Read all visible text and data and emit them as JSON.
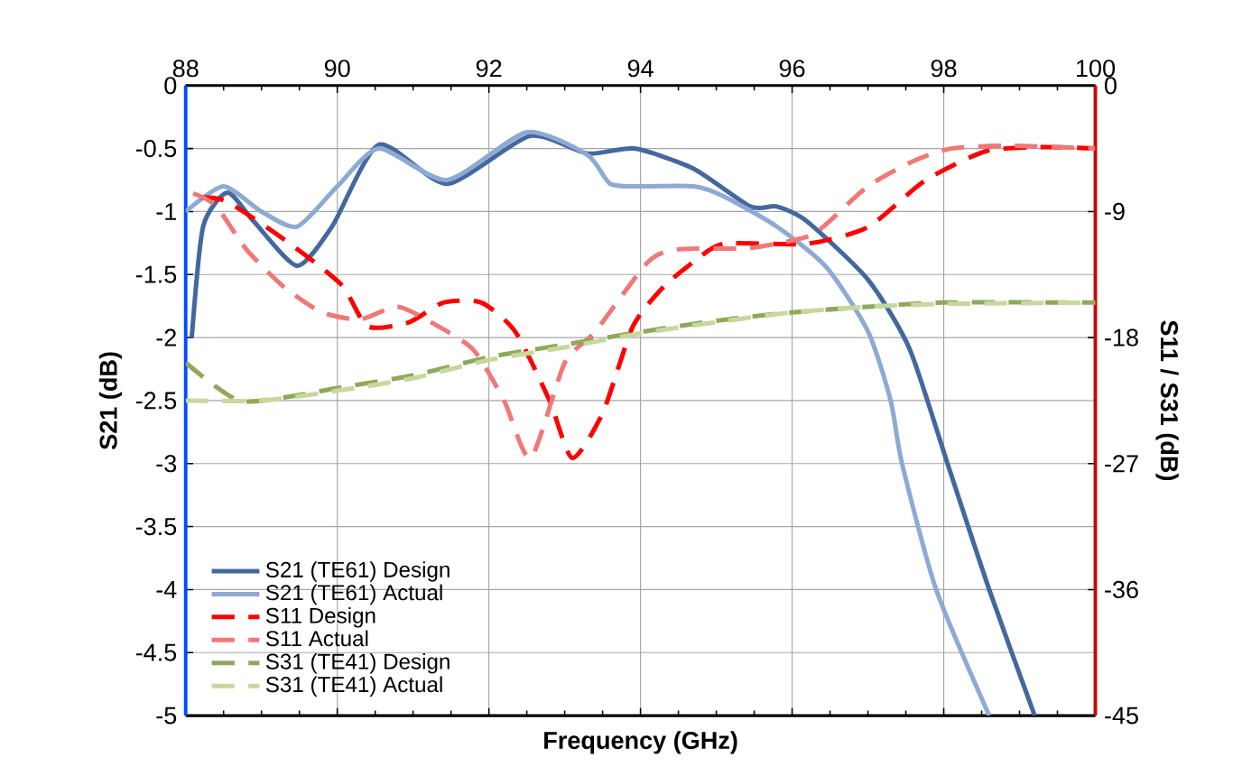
{
  "chart_data": {
    "type": "line",
    "xlabel": "Frequency (GHz)",
    "ylabel": "S21 (dB)",
    "y2label": "S11 / S31 (dB)",
    "xlim": [
      88,
      100
    ],
    "xticks": [
      88,
      90,
      92,
      94,
      96,
      98,
      100
    ],
    "ylim": [
      -5,
      0
    ],
    "yticks": [
      -5,
      -4.5,
      -4,
      -3.5,
      -3,
      -2.5,
      -2,
      -1.5,
      -1,
      -0.5,
      0
    ],
    "y2lim": [
      -45,
      0
    ],
    "y2ticks": [
      -45,
      -36,
      -27,
      -18,
      -9,
      0
    ],
    "grid": true,
    "legend": "bottom left",
    "marker": "none",
    "series": [
      {
        "name": "S21 (TE61) Design",
        "color": "#44689e",
        "line_style": "solid",
        "x": [
          88.08,
          88.23,
          88.55,
          88.9,
          89.47,
          89.93,
          90.55,
          91.45,
          92.54,
          93.3,
          93.92,
          94.7,
          95.45,
          95.8,
          96.2,
          97.0,
          97.55,
          98.05,
          98.6,
          99.2
        ],
        "values": [
          -2.0,
          -1.12,
          -0.85,
          -1.08,
          -1.43,
          -1.12,
          -0.47,
          -0.78,
          -0.4,
          -0.54,
          -0.5,
          -0.66,
          -0.96,
          -0.96,
          -1.08,
          -1.54,
          -2.09,
          -3.0,
          -4.0,
          -5.0
        ]
      },
      {
        "name": "S21 (TE61) Actual",
        "color": "#8eaad4",
        "line_style": "solid",
        "x": [
          88.0,
          88.5,
          89.0,
          89.47,
          90.0,
          90.55,
          91.45,
          92.5,
          93.3,
          93.6,
          94.0,
          94.7,
          95.1,
          95.8,
          96.45,
          97.0,
          97.3,
          97.45,
          97.9,
          98.6
        ],
        "values": [
          -1.0,
          -0.8,
          -1.0,
          -1.12,
          -0.8,
          -0.5,
          -0.75,
          -0.37,
          -0.55,
          -0.78,
          -0.8,
          -0.8,
          -0.88,
          -1.12,
          -1.44,
          -1.95,
          -2.5,
          -3.0,
          -4.0,
          -5.0
        ]
      },
      {
        "name": "S11 Design",
        "color": "#ff0000",
        "line_style": "dashed",
        "axis": "y2",
        "x": [
          88.2,
          88.55,
          89.3,
          90.05,
          90.4,
          90.95,
          91.4,
          91.9,
          92.35,
          92.8,
          93.1,
          93.5,
          93.9,
          94.3,
          94.7,
          95.1,
          96.2,
          97.0,
          97.75,
          98.55,
          99.3,
          100
        ],
        "values": [
          -8.0,
          -8.3,
          -11.0,
          -14.2,
          -17.2,
          -16.9,
          -15.5,
          -15.5,
          -17.6,
          -22.5,
          -26.6,
          -23.4,
          -17.2,
          -14.4,
          -12.6,
          -11.3,
          -11.3,
          -10.1,
          -6.8,
          -4.7,
          -4.4,
          -4.5
        ]
      },
      {
        "name": "S11 Actual",
        "color": "#f07878",
        "line_style": "dashed",
        "axis": "y2",
        "x": [
          88.1,
          88.4,
          88.8,
          89.3,
          89.8,
          90.3,
          90.8,
          91.3,
          91.8,
          92.2,
          92.55,
          93.0,
          93.4,
          94.1,
          94.5,
          95.45,
          96.2,
          96.45,
          97.0,
          97.6,
          98.1,
          98.9,
          100
        ],
        "values": [
          -7.7,
          -8.6,
          -11.7,
          -14.4,
          -16.2,
          -16.7,
          -15.8,
          -17.1,
          -18.9,
          -22.5,
          -26.6,
          -19.8,
          -17.6,
          -12.6,
          -11.7,
          -11.6,
          -10.8,
          -9.9,
          -7.2,
          -5.4,
          -4.5,
          -4.3,
          -4.5
        ]
      },
      {
        "name": "S31 (TE41) Design",
        "color": "#8fa95a",
        "line_style": "dashed",
        "axis": "y2",
        "x": [
          88,
          88.7,
          89.5,
          90,
          91,
          92,
          93,
          94,
          95,
          96,
          97,
          98,
          100
        ],
        "values": [
          -19.8,
          -22.5,
          -22.1,
          -21.6,
          -20.7,
          -19.4,
          -18.5,
          -17.6,
          -16.8,
          -16.2,
          -15.8,
          -15.5,
          -15.5
        ]
      },
      {
        "name": "S31 (TE41) Actual",
        "color": "#c8d79e",
        "line_style": "dashed",
        "axis": "y2",
        "x": [
          88,
          89,
          90,
          91,
          92,
          93,
          94,
          95,
          96,
          97,
          98,
          100
        ],
        "values": [
          -22.5,
          -22.5,
          -21.8,
          -20.9,
          -19.6,
          -18.7,
          -17.7,
          -16.9,
          -16.2,
          -15.8,
          -15.6,
          -15.5
        ]
      }
    ]
  }
}
